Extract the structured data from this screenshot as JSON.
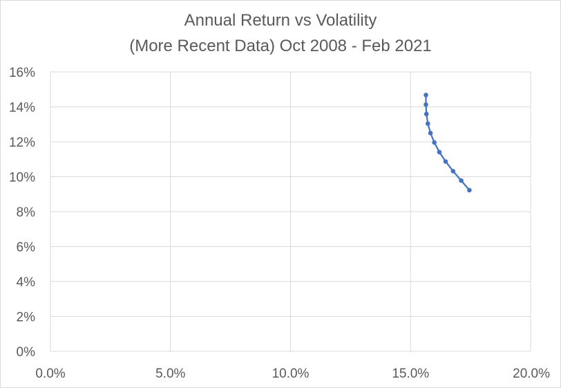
{
  "chart_data": {
    "type": "scatter",
    "title": "Annual Return vs Volatility",
    "subtitle": "(More Recent Data) Oct 2008 - Feb 2021",
    "xlabel": "",
    "ylabel": "",
    "xlim": [
      0,
      0.2
    ],
    "ylim": [
      0,
      0.16
    ],
    "x_ticks": [
      "0.0%",
      "5.0%",
      "10.0%",
      "15.0%",
      "20.0%"
    ],
    "y_ticks": [
      "0%",
      "2%",
      "4%",
      "6%",
      "8%",
      "10%",
      "12%",
      "14%",
      "16%"
    ],
    "grid": true,
    "legend": "none",
    "series": [
      {
        "color": "#4472c4",
        "x": [
          0.1564,
          0.1564,
          0.1566,
          0.1572,
          0.1583,
          0.1599,
          0.162,
          0.1646,
          0.1677,
          0.1711,
          0.1745
        ],
        "y": [
          0.1468,
          0.1413,
          0.1359,
          0.1304,
          0.125,
          0.1196,
          0.1141,
          0.1087,
          0.1032,
          0.0978,
          0.0923
        ]
      }
    ]
  }
}
